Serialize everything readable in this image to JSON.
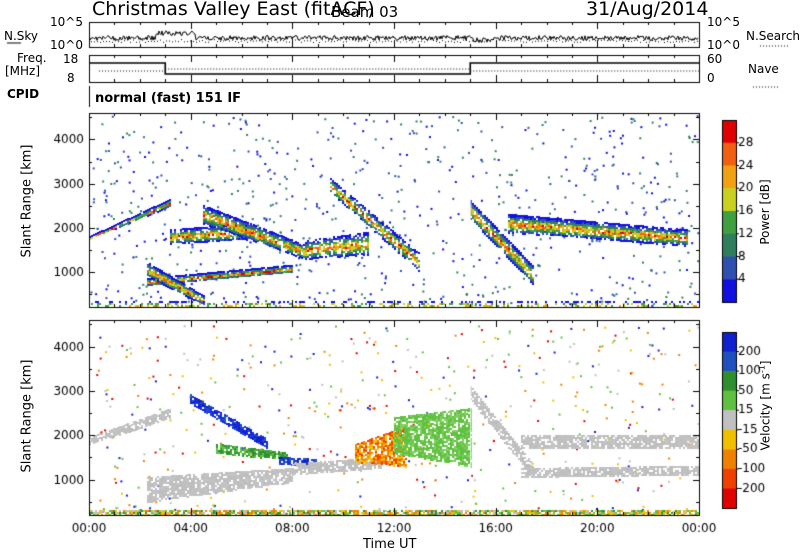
{
  "header": {
    "title": "Christmas Valley East (fitACF)",
    "beam": "Beam 03",
    "date": "31/Aug/2014"
  },
  "top_panel": {
    "left_label": "N.Sky",
    "right_label": "N.Search",
    "y_ticks_left": [
      "10^5",
      "10^0"
    ],
    "y_ticks_right": [
      "10^5",
      "10^0"
    ]
  },
  "freq_panel": {
    "left_label_line1": "Freq.",
    "left_label_line2": "[MHz]",
    "right_label": "Nave",
    "y_ticks_left": [
      "18",
      "8"
    ],
    "y_ticks_right": [
      "60",
      "0"
    ]
  },
  "cpid": {
    "label": "CPID",
    "value": "normal (fast) 151 IF"
  },
  "x_axis": {
    "label": "Time UT",
    "ticks": [
      "00:00",
      "04:00",
      "08:00",
      "12:00",
      "16:00",
      "20:00",
      "00:00"
    ]
  },
  "colors": {
    "frame": "#000000",
    "background": "#ffffff",
    "ground_scatter": "#bebebe"
  },
  "chart_data": [
    {
      "name": "power",
      "type": "heatmap",
      "xlabel": "Time UT",
      "ylabel": "Slant Range [km]",
      "x_ticks": [
        "00:00",
        "04:00",
        "08:00",
        "12:00",
        "16:00",
        "20:00",
        "00:00"
      ],
      "y_ticks": [
        1000,
        2000,
        3000,
        4000
      ],
      "ylim": [
        200,
        4600
      ],
      "xlim_hours": [
        0,
        24
      ],
      "colorbar": {
        "label": "Power [dB]",
        "ticks": [
          "4",
          "8",
          "12",
          "16",
          "20",
          "24",
          "28"
        ],
        "colors": [
          "#1010e0",
          "#3050b0",
          "#2f7f5f",
          "#40a040",
          "#c8d020",
          "#f0a010",
          "#f06010",
          "#e00000"
        ]
      },
      "bands": [
        {
          "t0": 0.0,
          "t1": 3.2,
          "r0": 1750,
          "r1": 2500,
          "rs0": 1800,
          "rs1": 2650,
          "dens": 0.85
        },
        {
          "t0": 3.2,
          "t1": 6.5,
          "r0": 1650,
          "r1": 1750,
          "rs0": 1950,
          "rs1": 2100,
          "dens": 0.75
        },
        {
          "t0": 4.5,
          "t1": 8.5,
          "r0": 2100,
          "r1": 1300,
          "rs0": 2500,
          "rs1": 1600,
          "dens": 0.85
        },
        {
          "t0": 8.5,
          "t1": 11.0,
          "r0": 1300,
          "r1": 1400,
          "rs0": 1700,
          "rs1": 1900,
          "dens": 0.7
        },
        {
          "t0": 9.5,
          "t1": 13.0,
          "r0": 2800,
          "r1": 1000,
          "rs0": 3100,
          "rs1": 1400,
          "dens": 0.7
        },
        {
          "t0": 2.3,
          "t1": 8.0,
          "r0": 700,
          "r1": 1000,
          "rs0": 850,
          "rs1": 1150,
          "dens": 0.9
        },
        {
          "t0": 2.3,
          "t1": 4.5,
          "r0": 900,
          "r1": 250,
          "rs0": 1200,
          "rs1": 450,
          "dens": 0.9
        },
        {
          "t0": 15.0,
          "t1": 17.5,
          "r0": 2200,
          "r1": 700,
          "rs0": 2600,
          "rs1": 1100,
          "dens": 0.85
        },
        {
          "t0": 16.5,
          "t1": 23.5,
          "r0": 1900,
          "r1": 1600,
          "rs0": 2300,
          "rs1": 1950,
          "dens": 0.85
        },
        {
          "t0": 0.0,
          "t1": 24.0,
          "r0": 200,
          "r1": 200,
          "rs0": 330,
          "rs1": 330,
          "dens": 0.35
        }
      ]
    },
    {
      "name": "velocity",
      "type": "heatmap",
      "xlabel": "Time UT",
      "ylabel": "Slant Range [km]",
      "x_ticks": [
        "00:00",
        "04:00",
        "08:00",
        "12:00",
        "16:00",
        "20:00",
        "00:00"
      ],
      "y_ticks": [
        1000,
        2000,
        3000,
        4000
      ],
      "ylim": [
        200,
        4600
      ],
      "xlim_hours": [
        0,
        24
      ],
      "colorbar": {
        "label": "Velocity [m s^-1]",
        "ticks": [
          "200",
          "100",
          "50",
          "15",
          "-15",
          "-50",
          "-100",
          "-200"
        ],
        "colors": [
          "#1020d0",
          "#2050c0",
          "#2f8f2f",
          "#60c040",
          "#c0c0c0",
          "#f0c000",
          "#f08000",
          "#f04000",
          "#e00000"
        ]
      },
      "bands": [
        {
          "t0": 0.0,
          "t1": 3.2,
          "r0": 1800,
          "r1": 2400,
          "rs0": 1950,
          "rs1": 2600,
          "v": "gray"
        },
        {
          "t0": 2.3,
          "t1": 8.0,
          "r0": 500,
          "r1": 950,
          "rs0": 1050,
          "rs1": 1250,
          "v": "gray"
        },
        {
          "t0": 4.0,
          "t1": 7.0,
          "r0": 2700,
          "r1": 1700,
          "rs0": 2900,
          "rs1": 1900,
          "v": "blue"
        },
        {
          "t0": 5.0,
          "t1": 7.8,
          "r0": 1600,
          "r1": 1450,
          "rs0": 1800,
          "rs1": 1600,
          "v": "green"
        },
        {
          "t0": 7.5,
          "t1": 9.0,
          "r0": 1350,
          "r1": 1300,
          "rs0": 1500,
          "rs1": 1450,
          "v": "blue"
        },
        {
          "t0": 8.0,
          "t1": 11.5,
          "r0": 1100,
          "r1": 1250,
          "rs0": 1350,
          "rs1": 1500,
          "v": "gray"
        },
        {
          "t0": 10.5,
          "t1": 12.5,
          "r0": 1400,
          "r1": 1300,
          "rs0": 1800,
          "rs1": 2200,
          "v": "orange"
        },
        {
          "t0": 12.0,
          "t1": 15.0,
          "r0": 1600,
          "r1": 1300,
          "rs0": 2400,
          "rs1": 2600,
          "v": "lightgreen"
        },
        {
          "t0": 15.0,
          "t1": 17.5,
          "r0": 2800,
          "r1": 1000,
          "rs0": 3100,
          "rs1": 1300,
          "v": "gray"
        },
        {
          "t0": 17.0,
          "t1": 24.0,
          "r0": 1700,
          "r1": 1700,
          "rs0": 2000,
          "rs1": 2000,
          "v": "gray"
        },
        {
          "t0": 17.0,
          "t1": 24.0,
          "r0": 1050,
          "r1": 1100,
          "rs0": 1250,
          "rs1": 1300,
          "v": "gray"
        },
        {
          "t0": 0.0,
          "t1": 24.0,
          "r0": 200,
          "r1": 200,
          "rs0": 300,
          "rs1": 300,
          "v": "mixed"
        }
      ]
    }
  ]
}
